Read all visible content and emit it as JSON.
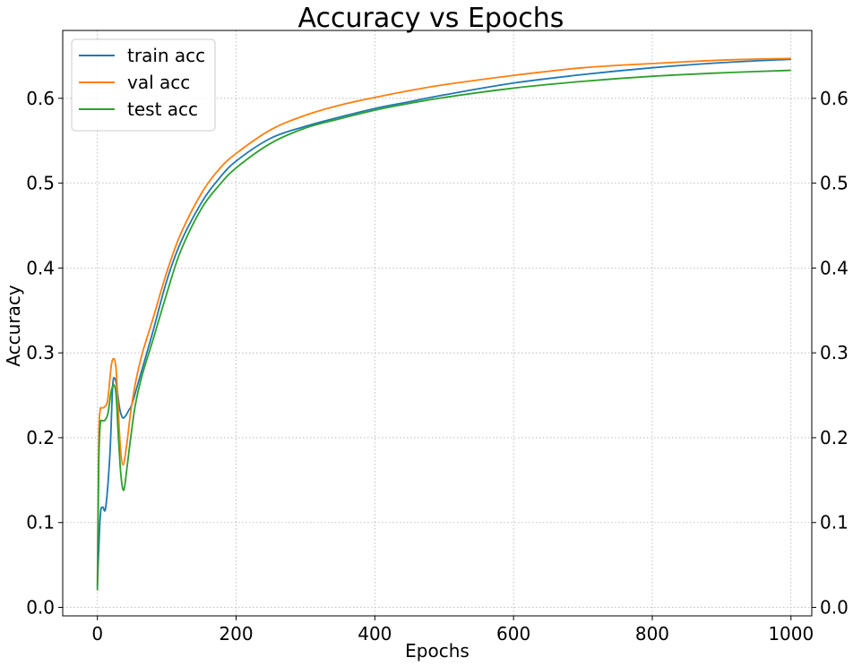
{
  "chart_data": {
    "type": "line",
    "title": "Accuracy vs Epochs",
    "xlabel": "Epochs",
    "ylabel": "Accuracy",
    "xlim": [
      -50,
      1030
    ],
    "ylim": [
      -0.01,
      0.68
    ],
    "xticks": [
      0,
      200,
      400,
      600,
      800,
      1000
    ],
    "yticks": [
      0.0,
      0.1,
      0.2,
      0.3,
      0.4,
      0.5,
      0.6
    ],
    "ytick_labels_right": true,
    "grid": true,
    "legend_position": "top-left",
    "series": [
      {
        "name": "train acc",
        "color": "#1f77b4",
        "x": [
          0,
          3,
          5,
          8,
          12,
          18,
          22,
          25,
          28,
          32,
          36,
          40,
          45,
          50,
          60,
          80,
          100,
          120,
          150,
          175,
          200,
          250,
          300,
          350,
          400,
          450,
          500,
          600,
          700,
          800,
          900,
          1000
        ],
        "y": [
          0.025,
          0.09,
          0.115,
          0.118,
          0.118,
          0.18,
          0.26,
          0.27,
          0.26,
          0.235,
          0.224,
          0.225,
          0.232,
          0.24,
          0.268,
          0.325,
          0.385,
          0.43,
          0.477,
          0.505,
          0.526,
          0.553,
          0.567,
          0.578,
          0.588,
          0.596,
          0.604,
          0.618,
          0.628,
          0.636,
          0.642,
          0.646
        ]
      },
      {
        "name": "val acc",
        "color": "#ff7f0e",
        "x": [
          0,
          2,
          4,
          6,
          10,
          15,
          20,
          24,
          27,
          30,
          33,
          37,
          42,
          48,
          55,
          65,
          80,
          100,
          120,
          150,
          175,
          200,
          250,
          300,
          350,
          400,
          450,
          500,
          600,
          700,
          800,
          900,
          1000
        ],
        "y": [
          0.03,
          0.2,
          0.232,
          0.235,
          0.236,
          0.245,
          0.285,
          0.293,
          0.28,
          0.235,
          0.19,
          0.168,
          0.19,
          0.23,
          0.265,
          0.3,
          0.34,
          0.395,
          0.44,
          0.488,
          0.516,
          0.535,
          0.563,
          0.58,
          0.592,
          0.601,
          0.609,
          0.616,
          0.627,
          0.636,
          0.641,
          0.645,
          0.647
        ]
      },
      {
        "name": "test acc",
        "color": "#2ca02c",
        "x": [
          0,
          2,
          4,
          6,
          10,
          15,
          20,
          24,
          27,
          30,
          34,
          38,
          42,
          48,
          55,
          65,
          80,
          100,
          120,
          150,
          175,
          200,
          250,
          300,
          350,
          400,
          450,
          500,
          600,
          700,
          800,
          900,
          1000
        ],
        "y": [
          0.02,
          0.17,
          0.215,
          0.22,
          0.22,
          0.228,
          0.255,
          0.262,
          0.25,
          0.205,
          0.155,
          0.138,
          0.16,
          0.2,
          0.24,
          0.275,
          0.315,
          0.37,
          0.42,
          0.47,
          0.497,
          0.518,
          0.547,
          0.565,
          0.576,
          0.586,
          0.594,
          0.601,
          0.612,
          0.62,
          0.626,
          0.63,
          0.633
        ]
      }
    ]
  }
}
